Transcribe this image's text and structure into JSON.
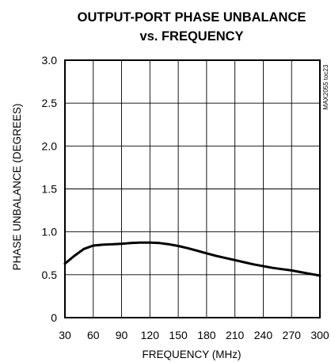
{
  "chart_data": {
    "type": "line",
    "title": "OUTPUT-PORT PHASE UNBALANCE",
    "subtitle": "vs. FREQUENCY",
    "xlabel": "FREQUENCY (MHz)",
    "ylabel": "PHASE UNBALANCE (DEGREES)",
    "xlim": [
      30,
      300
    ],
    "ylim": [
      0,
      3.0
    ],
    "xticks": [
      30,
      60,
      90,
      120,
      150,
      180,
      210,
      240,
      270,
      300
    ],
    "xtick_labels": [
      "30",
      "60",
      "90",
      "120",
      "150",
      "180",
      "210",
      "240",
      "270",
      "300"
    ],
    "yticks": [
      0,
      0.5,
      1.0,
      1.5,
      2.0,
      2.5,
      3.0
    ],
    "ytick_labels": [
      "0",
      "0.5",
      "1.0",
      "1.5",
      "2.0",
      "2.5",
      "3.0"
    ],
    "grid": true,
    "figure_code": "MAX2055 toc23",
    "series": [
      {
        "x": [
          30,
          40,
          50,
          60,
          70,
          80,
          90,
          100,
          110,
          120,
          130,
          140,
          150,
          160,
          170,
          180,
          190,
          200,
          210,
          220,
          230,
          240,
          250,
          260,
          270,
          280,
          290,
          300
        ],
        "y": [
          0.63,
          0.72,
          0.8,
          0.84,
          0.85,
          0.855,
          0.86,
          0.87,
          0.875,
          0.875,
          0.87,
          0.855,
          0.835,
          0.81,
          0.78,
          0.75,
          0.72,
          0.695,
          0.67,
          0.645,
          0.62,
          0.6,
          0.58,
          0.565,
          0.55,
          0.53,
          0.51,
          0.49
        ]
      }
    ]
  }
}
